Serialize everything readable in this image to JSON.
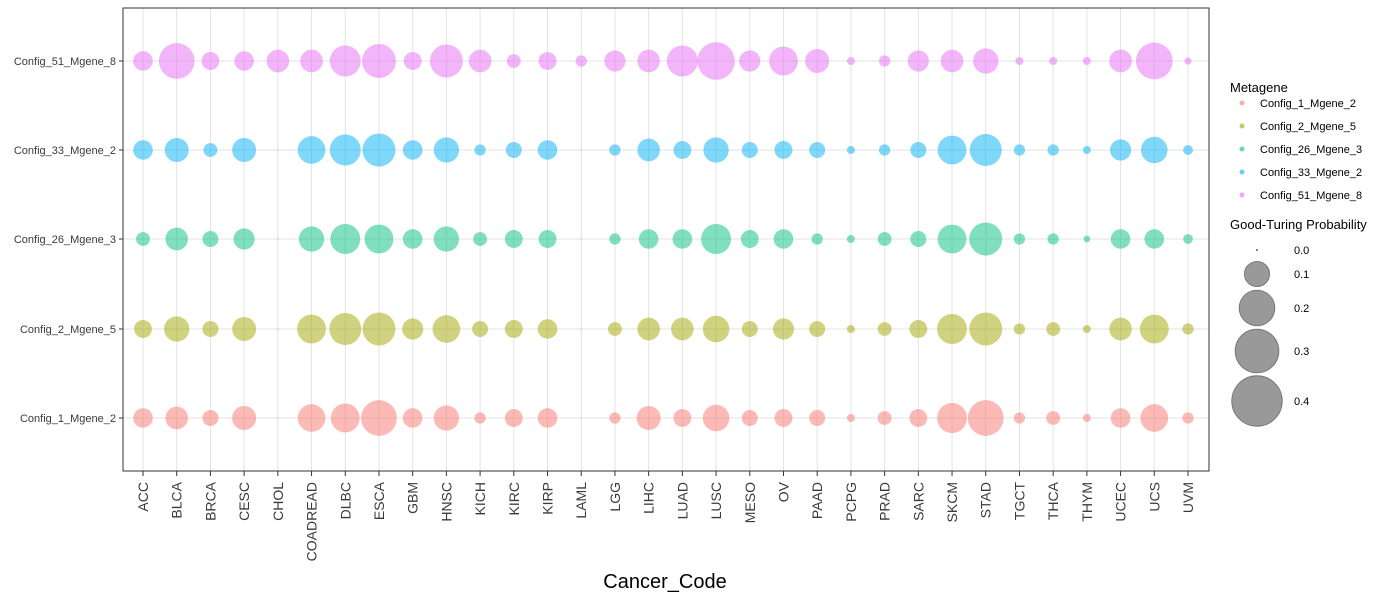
{
  "chart_data": {
    "type": "scatter",
    "xlabel": "Cancer_Code",
    "ylabel": "",
    "categories": [
      "ACC",
      "BLCA",
      "BRCA",
      "CESC",
      "CHOL",
      "COADREAD",
      "DLBC",
      "ESCA",
      "GBM",
      "HNSC",
      "KICH",
      "KIRC",
      "KIRP",
      "LAML",
      "LGG",
      "LIHC",
      "LUAD",
      "LUSC",
      "MESO",
      "OV",
      "PAAD",
      "PCPG",
      "PRAD",
      "SARC",
      "SKCM",
      "STAD",
      "TGCT",
      "THCA",
      "THYM",
      "UCEC",
      "UCS",
      "UVM"
    ],
    "rows": [
      "Config_1_Mgene_2",
      "Config_2_Mgene_5",
      "Config_26_Mgene_3",
      "Config_33_Mgene_2",
      "Config_51_Mgene_8"
    ],
    "grid": true,
    "legend_position": "right",
    "color_legend": {
      "title": "Metagene",
      "entries": [
        {
          "label": "Config_1_Mgene_2",
          "color": "#F8766D"
        },
        {
          "label": "Config_2_Mgene_5",
          "color": "#A3A500"
        },
        {
          "label": "Config_26_Mgene_3",
          "color": "#00BF7D"
        },
        {
          "label": "Config_33_Mgene_2",
          "color": "#00B0F6"
        },
        {
          "label": "Config_51_Mgene_8",
          "color": "#E76BF3"
        }
      ]
    },
    "size_legend": {
      "title": "Good-Turing Probability",
      "breaks": [
        0.0,
        0.1,
        0.2,
        0.3,
        0.4
      ],
      "labels": [
        "0.0",
        "0.1",
        "0.2",
        "0.3",
        "0.4"
      ]
    },
    "series": [
      {
        "name": "Config_1_Mgene_2",
        "values": [
          0.06,
          0.08,
          0.04,
          0.09,
          0.0,
          0.12,
          0.13,
          0.2,
          0.06,
          0.1,
          0.02,
          0.05,
          0.06,
          0.0,
          0.02,
          0.09,
          0.05,
          0.11,
          0.04,
          0.05,
          0.04,
          0.01,
          0.03,
          0.05,
          0.14,
          0.2,
          0.02,
          0.03,
          0.01,
          0.06,
          0.12,
          0.02
        ]
      },
      {
        "name": "Config_2_Mgene_5",
        "values": [
          0.05,
          0.1,
          0.04,
          0.09,
          0.0,
          0.13,
          0.16,
          0.17,
          0.07,
          0.12,
          0.04,
          0.05,
          0.06,
          0.0,
          0.03,
          0.08,
          0.08,
          0.11,
          0.04,
          0.07,
          0.04,
          0.01,
          0.03,
          0.05,
          0.14,
          0.17,
          0.02,
          0.03,
          0.01,
          0.08,
          0.13,
          0.02
        ]
      },
      {
        "name": "Config_26_Mgene_3",
        "values": [
          0.03,
          0.08,
          0.04,
          0.07,
          0.0,
          0.1,
          0.14,
          0.13,
          0.06,
          0.1,
          0.03,
          0.05,
          0.05,
          0.0,
          0.02,
          0.06,
          0.06,
          0.14,
          0.05,
          0.06,
          0.02,
          0.01,
          0.03,
          0.04,
          0.13,
          0.17,
          0.02,
          0.02,
          0.007,
          0.06,
          0.06,
          0.015
        ]
      },
      {
        "name": "Config_33_Mgene_2",
        "values": [
          0.06,
          0.09,
          0.03,
          0.09,
          0.0,
          0.12,
          0.15,
          0.17,
          0.06,
          0.1,
          0.02,
          0.04,
          0.06,
          0.0,
          0.02,
          0.08,
          0.05,
          0.1,
          0.04,
          0.05,
          0.04,
          0.01,
          0.02,
          0.04,
          0.13,
          0.16,
          0.02,
          0.02,
          0.01,
          0.07,
          0.11,
          0.015
        ]
      },
      {
        "name": "Config_51_Mgene_8",
        "values": [
          0.06,
          0.2,
          0.05,
          0.06,
          0.08,
          0.08,
          0.15,
          0.18,
          0.05,
          0.17,
          0.08,
          0.03,
          0.05,
          0.02,
          0.07,
          0.08,
          0.15,
          0.22,
          0.07,
          0.13,
          0.09,
          0.01,
          0.02,
          0.07,
          0.08,
          0.1,
          0.01,
          0.01,
          0.01,
          0.08,
          0.21,
          0.008
        ]
      }
    ]
  }
}
